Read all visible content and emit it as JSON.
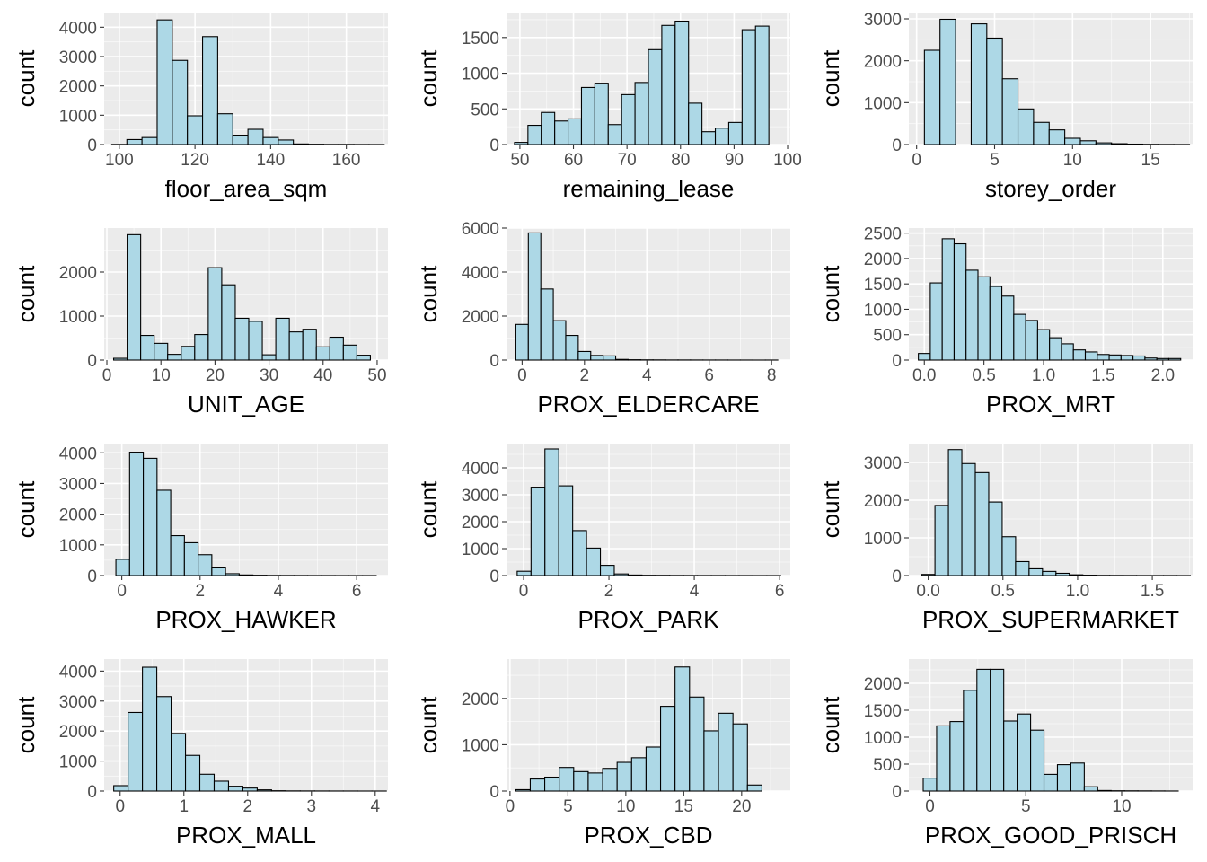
{
  "figure": {
    "background": "#ffffff",
    "panel_background": "#ebebeb",
    "gridline_color": "#ffffff",
    "bar_fill": "#add8e6",
    "bar_outline": "#000000"
  },
  "chart_data": [
    {
      "type": "bar",
      "title": "",
      "xlabel": "floor_area_sqm",
      "ylabel": "count",
      "xlim": [
        96,
        171
      ],
      "ylim": [
        0,
        4500
      ],
      "xticks": [
        100,
        120,
        140,
        160
      ],
      "yticks": [
        0,
        1000,
        2000,
        3000,
        4000
      ],
      "bin_starts": [
        98,
        102,
        106,
        110,
        114,
        118,
        122,
        126,
        130,
        134,
        138,
        142,
        146,
        150,
        154,
        158,
        162,
        166
      ],
      "bin_width": 4,
      "values": [
        5,
        170,
        240,
        4250,
        2870,
        980,
        3680,
        1050,
        320,
        520,
        240,
        155,
        20,
        10,
        5,
        5,
        3,
        2
      ]
    },
    {
      "type": "bar",
      "title": "",
      "xlabel": "remaining_lease",
      "ylabel": "count",
      "xlim": [
        47.5,
        100.5
      ],
      "ylim": [
        0,
        1850
      ],
      "xticks": [
        50,
        60,
        70,
        80,
        90,
        100
      ],
      "yticks": [
        0,
        500,
        1000,
        1500
      ],
      "bin_starts": [
        49,
        51.5,
        54,
        56.5,
        59,
        61.5,
        64,
        66.5,
        69,
        71.5,
        74,
        76.5,
        79,
        81.5,
        84,
        86.5,
        89,
        91.5,
        94,
        96.5
      ],
      "bin_width": 2.5,
      "values": [
        30,
        270,
        450,
        330,
        360,
        800,
        860,
        280,
        700,
        870,
        1330,
        1670,
        1730,
        580,
        180,
        230,
        310,
        1610,
        1660,
        0
      ]
    },
    {
      "type": "bar",
      "title": "",
      "xlabel": "storey_order",
      "ylabel": "count",
      "xlim": [
        -0.5,
        17.7
      ],
      "ylim": [
        0,
        3150
      ],
      "xticks": [
        0,
        5,
        10,
        15
      ],
      "yticks": [
        0,
        1000,
        2000,
        3000
      ],
      "bin_starts": [
        0.5,
        1.5,
        2.5,
        3.5,
        4.5,
        5.5,
        6.5,
        7.5,
        8.5,
        9.5,
        10.5,
        11.5,
        12.5,
        13.5,
        14.5,
        15.5,
        16.5
      ],
      "bin_width": 1,
      "values": [
        2250,
        2990,
        0,
        2880,
        2540,
        1570,
        850,
        530,
        350,
        150,
        90,
        40,
        20,
        10,
        5,
        3,
        2
      ]
    },
    {
      "type": "bar",
      "title": "",
      "xlabel": "UNIT_AGE",
      "ylabel": "count",
      "xlim": [
        -0.5,
        52
      ],
      "ylim": [
        0,
        3000
      ],
      "xticks": [
        0,
        10,
        20,
        30,
        40,
        50
      ],
      "yticks": [
        0,
        1000,
        2000
      ],
      "bin_starts": [
        1.25,
        3.75,
        6.25,
        8.75,
        11.25,
        13.75,
        16.25,
        18.75,
        21.25,
        23.75,
        26.25,
        28.75,
        31.25,
        33.75,
        36.25,
        38.75,
        41.25,
        43.75,
        46.25,
        48.75
      ],
      "bin_width": 2.5,
      "values": [
        40,
        2850,
        560,
        380,
        130,
        310,
        580,
        2100,
        1710,
        950,
        880,
        120,
        950,
        640,
        700,
        300,
        520,
        340,
        110,
        0
      ]
    },
    {
      "type": "bar",
      "title": "",
      "xlabel": "PROX_ELDERCARE",
      "ylabel": "count",
      "xlim": [
        -0.5,
        8.6
      ],
      "ylim": [
        0,
        6000
      ],
      "xticks": [
        0,
        2,
        4,
        6,
        8
      ],
      "yticks": [
        0,
        2000,
        4000,
        6000
      ],
      "bin_starts": [
        -0.2,
        0.2,
        0.6,
        1,
        1.4,
        1.8,
        2.2,
        2.6,
        3,
        3.4,
        3.8,
        4.2,
        4.6,
        5,
        5.4,
        5.8,
        6.2,
        6.6,
        7,
        7.4,
        7.8
      ],
      "bin_width": 0.4,
      "values": [
        1620,
        5780,
        3230,
        1790,
        1120,
        390,
        210,
        190,
        30,
        15,
        10,
        8,
        5,
        5,
        4,
        3,
        3,
        2,
        2,
        1,
        2
      ]
    },
    {
      "type": "bar",
      "title": "",
      "xlabel": "PROX_MRT",
      "ylabel": "count",
      "xlim": [
        -0.13,
        2.25
      ],
      "ylim": [
        0,
        2600
      ],
      "xticks": [
        0,
        0.5,
        1,
        1.5,
        2
      ],
      "xtick_labels": [
        "0.0",
        "0.5",
        "1.0",
        "1.5",
        "2.0"
      ],
      "yticks": [
        0,
        500,
        1000,
        1500,
        2000,
        2500
      ],
      "bin_starts": [
        -0.05,
        0.05,
        0.15,
        0.25,
        0.35,
        0.45,
        0.55,
        0.65,
        0.75,
        0.85,
        0.95,
        1.05,
        1.15,
        1.25,
        1.35,
        1.45,
        1.55,
        1.65,
        1.75,
        1.85,
        1.95,
        2.05
      ],
      "bin_width": 0.1,
      "values": [
        130,
        1520,
        2390,
        2290,
        1770,
        1640,
        1450,
        1260,
        900,
        780,
        600,
        440,
        320,
        200,
        160,
        110,
        100,
        90,
        80,
        40,
        30,
        30
      ]
    },
    {
      "type": "bar",
      "title": "",
      "xlabel": "PROX_HAWKER",
      "ylabel": "count",
      "xlim": [
        -0.45,
        6.8
      ],
      "ylim": [
        0,
        4300
      ],
      "xticks": [
        0,
        2,
        4,
        6
      ],
      "yticks": [
        0,
        1000,
        2000,
        3000,
        4000
      ],
      "bin_starts": [
        -0.15,
        0.2,
        0.55,
        0.9,
        1.25,
        1.6,
        1.95,
        2.3,
        2.65,
        3,
        3.35,
        3.7,
        4.05,
        4.4,
        4.75,
        5.1,
        5.45,
        5.8,
        6.15
      ],
      "bin_width": 0.35,
      "values": [
        530,
        4020,
        3820,
        2780,
        1300,
        1070,
        680,
        250,
        60,
        20,
        10,
        5,
        4,
        3,
        2,
        2,
        1,
        1,
        1
      ]
    },
    {
      "type": "bar",
      "title": "",
      "xlabel": "PROX_PARK",
      "ylabel": "count",
      "xlim": [
        -0.4,
        6.25
      ],
      "ylim": [
        0,
        4900
      ],
      "xticks": [
        0,
        2,
        4,
        6
      ],
      "yticks": [
        0,
        1000,
        2000,
        3000,
        4000
      ],
      "bin_starts": [
        -0.15,
        0.175,
        0.5,
        0.825,
        1.15,
        1.475,
        1.8,
        2.125,
        2.45,
        2.775,
        3.1,
        3.425,
        3.75,
        4.075,
        4.4,
        4.725,
        5.05,
        5.375,
        5.7
      ],
      "bin_width": 0.325,
      "values": [
        160,
        3280,
        4700,
        3330,
        1670,
        1020,
        380,
        60,
        20,
        10,
        8,
        5,
        4,
        3,
        3,
        2,
        2,
        1,
        1
      ]
    },
    {
      "type": "bar",
      "title": "",
      "xlabel": "PROX_SUPERMARKET",
      "ylabel": "count",
      "xlim": [
        -0.13,
        1.77
      ],
      "ylim": [
        0,
        3500
      ],
      "xticks": [
        0,
        0.5,
        1,
        1.5
      ],
      "xtick_labels": [
        "0.0",
        "0.5",
        "1.0",
        "1.5"
      ],
      "yticks": [
        0,
        1000,
        2000,
        3000
      ],
      "bin_starts": [
        -0.045,
        0.045,
        0.135,
        0.225,
        0.315,
        0.405,
        0.495,
        0.585,
        0.675,
        0.765,
        0.855,
        0.945,
        1.035,
        1.125,
        1.215,
        1.305,
        1.395,
        1.485,
        1.575,
        1.665
      ],
      "bin_width": 0.09,
      "values": [
        30,
        1860,
        3340,
        2970,
        2730,
        1950,
        1030,
        370,
        180,
        110,
        60,
        20,
        10,
        5,
        4,
        3,
        2,
        2,
        2,
        1
      ]
    },
    {
      "type": "bar",
      "title": "",
      "xlabel": "PROX_MALL",
      "ylabel": "count",
      "xlim": [
        -0.25,
        4.2
      ],
      "ylim": [
        0,
        4400
      ],
      "xticks": [
        0,
        1,
        2,
        3,
        4
      ],
      "yticks": [
        0,
        1000,
        2000,
        3000,
        4000
      ],
      "bin_starts": [
        -0.1,
        0.125,
        0.35,
        0.575,
        0.8,
        1.025,
        1.25,
        1.475,
        1.7,
        1.925,
        2.15,
        2.375,
        2.6,
        2.825,
        3.05,
        3.275,
        3.5,
        3.725,
        3.95
      ],
      "bin_width": 0.225,
      "values": [
        180,
        2620,
        4130,
        3150,
        1920,
        1190,
        560,
        330,
        160,
        100,
        40,
        10,
        5,
        4,
        3,
        2,
        2,
        1,
        1
      ]
    },
    {
      "type": "bar",
      "title": "",
      "xlabel": "PROX_CBD",
      "ylabel": "count",
      "xlim": [
        -0.3,
        24.2
      ],
      "ylim": [
        0,
        2850
      ],
      "xticks": [
        0,
        5,
        10,
        15,
        20
      ],
      "yticks": [
        0,
        1000,
        2000
      ],
      "bin_starts": [
        0.5,
        1.75,
        3,
        4.25,
        5.5,
        6.75,
        8,
        9.25,
        10.5,
        11.75,
        13,
        14.25,
        15.5,
        16.75,
        18,
        19.25,
        20.5,
        21.75
      ],
      "bin_width": 1.25,
      "values": [
        30,
        260,
        300,
        510,
        420,
        390,
        490,
        620,
        720,
        950,
        1830,
        2680,
        2030,
        1300,
        1680,
        1450,
        130,
        0
      ]
    },
    {
      "type": "bar",
      "title": "",
      "xlabel": "PROX_GOOD_PRISCH",
      "ylabel": "count",
      "xlim": [
        -1.1,
        13.7
      ],
      "ylim": [
        0,
        2450
      ],
      "xticks": [
        0,
        5,
        10
      ],
      "yticks": [
        0,
        500,
        1000,
        1500,
        2000
      ],
      "bin_starts": [
        -0.35,
        0.35,
        1.05,
        1.75,
        2.45,
        3.15,
        3.85,
        4.55,
        5.25,
        5.95,
        6.65,
        7.35,
        8.05,
        8.75,
        9.45,
        10.15,
        10.85,
        11.55,
        12.25
      ],
      "bin_width": 0.7,
      "values": [
        240,
        1210,
        1290,
        1870,
        2260,
        2260,
        1300,
        1430,
        1130,
        310,
        490,
        520,
        80,
        10,
        5,
        4,
        3,
        2,
        1
      ]
    }
  ]
}
